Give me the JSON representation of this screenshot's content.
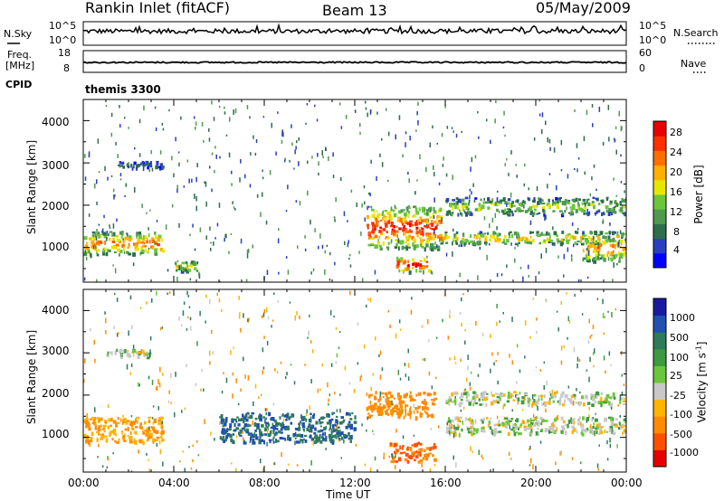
{
  "header": {
    "station": "Rankin Inlet (fitACF)",
    "beam": "Beam 13",
    "date": "05/May/2009"
  },
  "strips": {
    "nsky_label": "N.Sky",
    "nsky_ticks": [
      "10^5",
      "10^0"
    ],
    "nsearch_label": "N.Search",
    "nsearch_ticks": [
      "10^5",
      "10^0"
    ],
    "freq_label": "Freq.",
    "freq_unit": "[MHz]",
    "freq_ticks": [
      "18",
      "8"
    ],
    "nave_label": "Nave",
    "nave_ticks": [
      "60",
      "0"
    ],
    "cpid_label": "CPID",
    "cpid_value": "themis 3300"
  },
  "axes": {
    "ylabel": "Slant Range [km]",
    "xlabel": "Time UT",
    "yticks": [
      "4000",
      "3000",
      "2000",
      "1000"
    ],
    "xticks": [
      "00:00",
      "04:00",
      "08:00",
      "12:00",
      "16:00",
      "20:00",
      "00:00"
    ]
  },
  "colorbars": {
    "power": {
      "label": "Power [dB]",
      "ticks": [
        "28",
        "24",
        "20",
        "16",
        "12",
        "8",
        "4"
      ],
      "colors": [
        "#0000ff",
        "#2a3fbf",
        "#2e6e4a",
        "#4f9a4f",
        "#6bc63c",
        "#e6e600",
        "#ffb000",
        "#ff7000",
        "#ff3000",
        "#e60000"
      ]
    },
    "velocity": {
      "label": "Velocity [m s",
      "label_sup": "-1",
      "label_end": "]",
      "ticks": [
        "1000",
        "500",
        "100",
        "25",
        "-25",
        "-100",
        "-500",
        "-1000"
      ],
      "colors": [
        "#1a1aa0",
        "#2050b0",
        "#2e7a5a",
        "#3e9a3e",
        "#6cc63c",
        "#c8c8c8",
        "#ffb400",
        "#ff8c00",
        "#ff5000",
        "#e60000"
      ]
    }
  },
  "chart_data": [
    {
      "type": "heatmap",
      "title": "Power",
      "xlabel": "Time UT",
      "ylabel": "Slant Range [km]",
      "xlim": [
        "00:00",
        "24:00"
      ],
      "ylim": [
        180,
        4500
      ],
      "colorbar": "Power [dB]",
      "features": [
        {
          "time": [
            "00:00",
            "03:30"
          ],
          "range_km": [
            850,
            1400
          ],
          "power_db": 24
        },
        {
          "time": [
            "01:30",
            "03:30"
          ],
          "range_km": [
            2900,
            3050
          ],
          "power_db": 8
        },
        {
          "time": [
            "04:00",
            "05:00"
          ],
          "range_km": [
            450,
            700
          ],
          "power_db": 20
        },
        {
          "time": [
            "12:30",
            "15:45"
          ],
          "range_km": [
            1000,
            2000
          ],
          "power_db": 28
        },
        {
          "time": [
            "13:45",
            "15:15"
          ],
          "range_km": [
            450,
            800
          ],
          "power_db": 30
        },
        {
          "time": [
            "15:45",
            "24:00"
          ],
          "range_km": [
            1100,
            1400
          ],
          "power_db": 20
        },
        {
          "time": [
            "16:00",
            "24:00"
          ],
          "range_km": [
            1800,
            2200
          ],
          "power_db": 16
        },
        {
          "time": [
            "22:00",
            "24:00"
          ],
          "range_km": [
            700,
            1300
          ],
          "power_db": 24
        }
      ]
    },
    {
      "type": "heatmap",
      "title": "Velocity",
      "xlabel": "Time UT",
      "ylabel": "Slant Range [km]",
      "xlim": [
        "00:00",
        "24:00"
      ],
      "ylim": [
        180,
        4500
      ],
      "colorbar": "Velocity [m s-1]",
      "features": [
        {
          "time": [
            "00:00",
            "03:30"
          ],
          "range_km": [
            900,
            1500
          ],
          "velocity_ms": -100
        },
        {
          "time": [
            "01:00",
            "03:00"
          ],
          "range_km": [
            2900,
            3100
          ],
          "velocity_ms": 0
        },
        {
          "time": [
            "06:00",
            "12:00"
          ],
          "range_km": [
            900,
            1600
          ],
          "velocity_ms": 300
        },
        {
          "time": [
            "12:30",
            "15:30"
          ],
          "range_km": [
            1500,
            2100
          ],
          "velocity_ms": -200
        },
        {
          "time": [
            "13:30",
            "15:30"
          ],
          "range_km": [
            450,
            900
          ],
          "velocity_ms": -500
        },
        {
          "time": [
            "16:00",
            "24:00"
          ],
          "range_km": [
            1100,
            1500
          ],
          "velocity_ms": 0
        },
        {
          "time": [
            "16:00",
            "24:00"
          ],
          "range_km": [
            1800,
            2100
          ],
          "velocity_ms": 0
        }
      ]
    }
  ]
}
